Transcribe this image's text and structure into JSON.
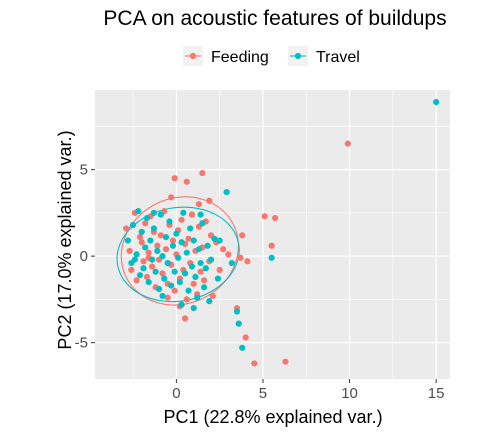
{
  "chart_data": {
    "type": "scatter",
    "title": "PCA on acoustic features of buildups",
    "xlabel": "PC1 (22.8% explained var.)",
    "ylabel": "PC2 (17.0% explained var.)",
    "xlim": [
      -4.7,
      15.8
    ],
    "ylim": [
      -7.1,
      9.6
    ],
    "x_ticks": [
      0,
      5,
      10,
      15
    ],
    "y_ticks": [
      -5,
      0,
      5
    ],
    "grid": true,
    "legend_position": "top",
    "series": [
      {
        "name": "Feeding",
        "color": "#F8766D",
        "ellipse": {
          "cx": 0.2,
          "cy": 0.3,
          "rx": 3.45,
          "ry": 3.05,
          "angle_deg": -25
        },
        "points": [
          [
            -2.9,
            1.6
          ],
          [
            -2.7,
            0.3
          ],
          [
            -2.6,
            -0.8
          ],
          [
            -2.4,
            2.5
          ],
          [
            -2.3,
            -1.4
          ],
          [
            -2.1,
            1.1
          ],
          [
            -2.0,
            0.8
          ],
          [
            -1.9,
            -0.3
          ],
          [
            -1.8,
            1.9
          ],
          [
            -1.7,
            -1.2
          ],
          [
            -1.6,
            0.2
          ],
          [
            -1.5,
            2.3
          ],
          [
            -1.4,
            -0.6
          ],
          [
            -1.3,
            1.4
          ],
          [
            -1.2,
            -1.8
          ],
          [
            -1.1,
            0.6
          ],
          [
            -1.0,
            -0.2
          ],
          [
            -0.9,
            1.2
          ],
          [
            -0.8,
            -1.0
          ],
          [
            -0.7,
            2.6
          ],
          [
            -0.6,
            0.4
          ],
          [
            -0.5,
            -1.6
          ],
          [
            -0.4,
            1.8
          ],
          [
            -0.3,
            -0.5
          ],
          [
            -0.2,
            0.9
          ],
          [
            -0.1,
            -2.0
          ],
          [
            0.0,
            0.1
          ],
          [
            0.1,
            1.5
          ],
          [
            0.2,
            -1.3
          ],
          [
            0.3,
            2.1
          ],
          [
            0.4,
            -0.8
          ],
          [
            0.5,
            0.7
          ],
          [
            0.6,
            -2.5
          ],
          [
            0.7,
            1.0
          ],
          [
            0.8,
            -0.4
          ],
          [
            0.9,
            2.4
          ],
          [
            1.0,
            -1.6
          ],
          [
            1.1,
            0.3
          ],
          [
            1.2,
            -2.2
          ],
          [
            1.3,
            1.7
          ],
          [
            1.4,
            -0.9
          ],
          [
            1.5,
            0.5
          ],
          [
            1.6,
            -1.4
          ],
          [
            1.7,
            2.0
          ],
          [
            1.9,
            -0.3
          ],
          [
            2.0,
            1.2
          ],
          [
            2.1,
            -2.3
          ],
          [
            2.3,
            0.8
          ],
          [
            -0.1,
            4.5
          ],
          [
            0.6,
            4.3
          ],
          [
            1.5,
            4.8
          ],
          [
            1.3,
            3.0
          ],
          [
            0.2,
            -2.9
          ],
          [
            0.5,
            -3.6
          ],
          [
            -0.5,
            -2.4
          ],
          [
            2.7,
            0.4
          ],
          [
            2.5,
            -0.8
          ],
          [
            3.0,
            0.1
          ],
          [
            3.8,
            1.2
          ],
          [
            3.7,
            -0.1
          ],
          [
            3.5,
            -3.0
          ],
          [
            4.1,
            -0.3
          ],
          [
            5.1,
            2.3
          ],
          [
            5.7,
            2.2
          ],
          [
            5.5,
            0.6
          ],
          [
            4.0,
            -4.7
          ],
          [
            4.5,
            -6.2
          ],
          [
            6.3,
            -6.1
          ],
          [
            9.9,
            6.5
          ],
          [
            -0.3,
            3.4
          ],
          [
            1.9,
            3.2
          ],
          [
            -1.6,
            -0.1
          ]
        ]
      },
      {
        "name": "Travel",
        "color": "#00BFC4",
        "ellipse": {
          "cx": 0.1,
          "cy": 0.1,
          "rx": 3.55,
          "ry": 2.7,
          "angle_deg": -10
        },
        "points": [
          [
            -2.8,
            0.9
          ],
          [
            -2.6,
            -0.4
          ],
          [
            -2.5,
            1.8
          ],
          [
            -2.3,
            0.1
          ],
          [
            -2.1,
            -1.1
          ],
          [
            -2.0,
            1.4
          ],
          [
            -1.9,
            -0.7
          ],
          [
            -1.8,
            0.5
          ],
          [
            -1.7,
            2.2
          ],
          [
            -1.6,
            -1.5
          ],
          [
            -1.5,
            0.9
          ],
          [
            -1.4,
            -0.2
          ],
          [
            -1.3,
            1.6
          ],
          [
            -1.2,
            -0.9
          ],
          [
            -1.1,
            0.3
          ],
          [
            -1.0,
            -1.9
          ],
          [
            -0.9,
            2.4
          ],
          [
            -0.8,
            0.0
          ],
          [
            -0.7,
            -1.3
          ],
          [
            -0.6,
            1.1
          ],
          [
            -0.5,
            -0.4
          ],
          [
            -0.4,
            2.0
          ],
          [
            -0.3,
            -1.7
          ],
          [
            -0.2,
            0.6
          ],
          [
            -0.1,
            -0.9
          ],
          [
            0.0,
            1.3
          ],
          [
            0.1,
            -0.1
          ],
          [
            0.2,
            -1.5
          ],
          [
            0.3,
            0.8
          ],
          [
            0.4,
            2.5
          ],
          [
            0.5,
            -1.0
          ],
          [
            0.6,
            0.2
          ],
          [
            0.7,
            -2.0
          ],
          [
            0.8,
            1.6
          ],
          [
            0.9,
            -0.6
          ],
          [
            1.0,
            0.9
          ],
          [
            1.1,
            -1.2
          ],
          [
            1.2,
            -2.4
          ],
          [
            1.3,
            0.4
          ],
          [
            1.4,
            -0.4
          ],
          [
            1.5,
            1.9
          ],
          [
            1.6,
            -1.8
          ],
          [
            1.7,
            -0.7
          ],
          [
            1.8,
            0.6
          ],
          [
            1.9,
            -2.6
          ],
          [
            2.0,
            -0.2
          ],
          [
            2.2,
            1.0
          ],
          [
            2.4,
            -1.3
          ],
          [
            -2.2,
            2.6
          ],
          [
            -1.3,
            2.5
          ],
          [
            2.5,
            0.9
          ],
          [
            2.9,
            3.7
          ],
          [
            1.4,
            2.4
          ],
          [
            3.2,
            -0.4
          ],
          [
            3.5,
            -3.2
          ],
          [
            3.6,
            -3.9
          ],
          [
            3.8,
            -5.3
          ],
          [
            5.5,
            -0.1
          ],
          [
            15.0,
            8.9
          ],
          [
            -0.8,
            -2.3
          ],
          [
            0.3,
            -2.8
          ],
          [
            1.0,
            -3.0
          ],
          [
            -2.4,
            -0.2
          ]
        ]
      }
    ]
  }
}
